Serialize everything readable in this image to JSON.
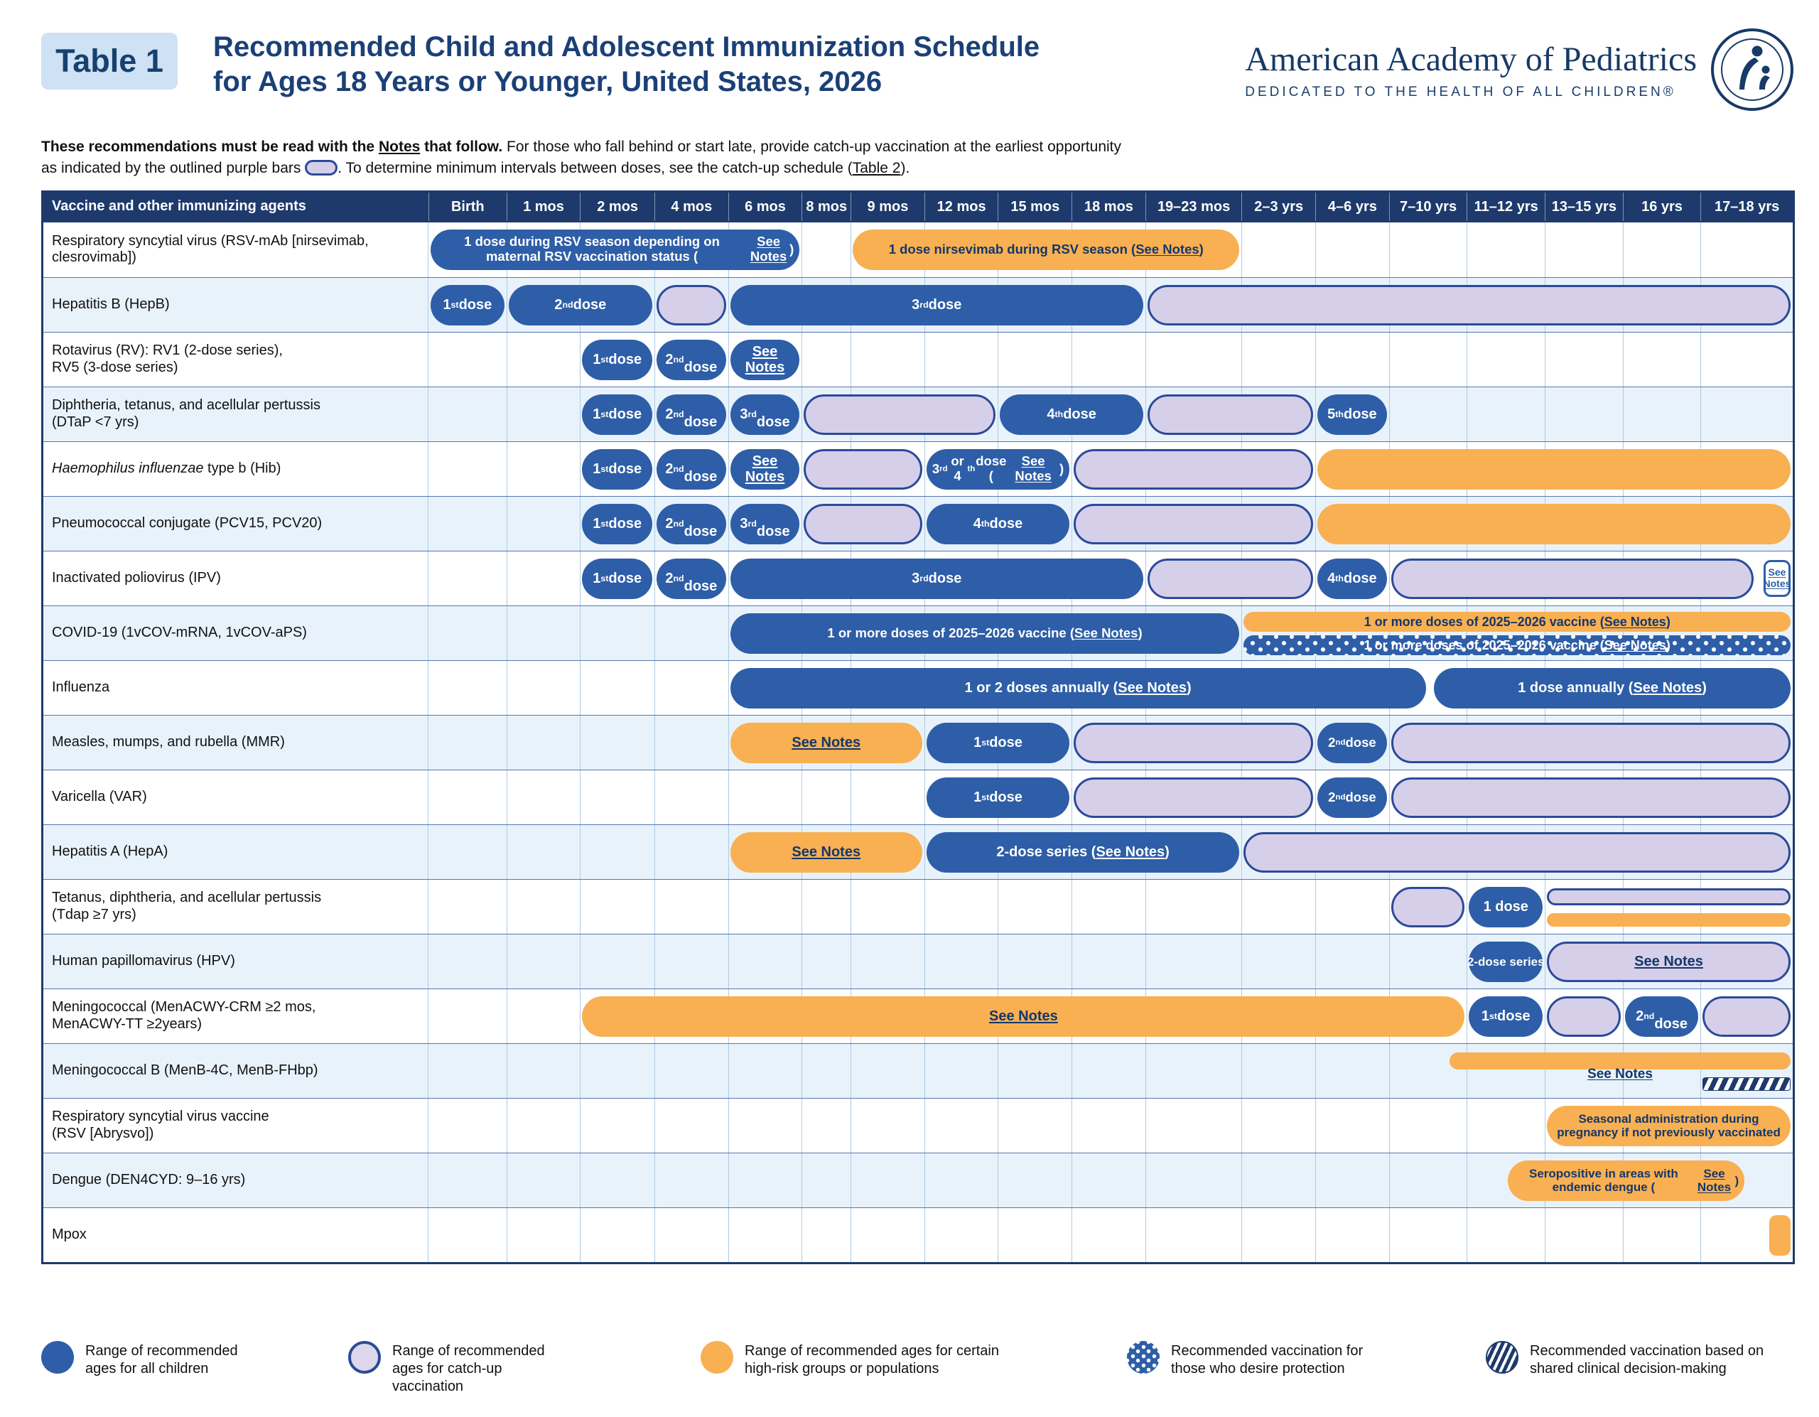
{
  "header": {
    "badge": "Table 1",
    "title_line1": "Recommended Child and Adolescent Immunization Schedule",
    "title_line2": "for Ages 18 Years or Younger, United States, 2026",
    "brand_name": "American Academy of Pediatrics",
    "brand_tagline": "DEDICATED TO THE HEALTH OF ALL CHILDREN®"
  },
  "intro": {
    "segments": [
      {
        "text": "These recommendations must be read with the ",
        "bold": true
      },
      {
        "text": "Notes",
        "bold": true,
        "underline": true
      },
      {
        "text": " that follow.",
        "bold": true
      },
      {
        "text": " For those who fall behind or start late, provide catch-up vaccination at the earliest opportunity as indicated by the outlined purple bars "
      },
      {
        "icon": "catch-up-pill"
      },
      {
        "text": ". To determine minimum intervals between doses, see the catch-up schedule ("
      },
      {
        "text": "Table 2",
        "underline": true
      },
      {
        "text": ")."
      }
    ]
  },
  "colors": {
    "recommended_blue": "#2E5EA7",
    "catch_up_fill": "#D6CFE9",
    "catch_up_border": "#2B4A99",
    "high_risk_orange": "#F8B052",
    "header_navy": "#1E3A6C",
    "title_navy": "#1B4077"
  },
  "table": {
    "vaccine_column_header": "Vaccine and other immunizing agents",
    "age_columns": [
      "Birth",
      "1 mos",
      "2 mos",
      "4 mos",
      "6 mos",
      "8 mos",
      "9 mos",
      "12 mos",
      "15 mos",
      "18 mos",
      "19–23 mos",
      "2–3 yrs",
      "4–6 yrs",
      "7–10 yrs",
      "11–12 yrs",
      "13–15 yrs",
      "16 yrs",
      "17–18 yrs"
    ],
    "rows": [
      {
        "id": "rsv-mab",
        "label_lines": [
          [
            {
              "t": "Respiratory syncytial virus (RSV-mAb [nirsevimab,"
            }
          ],
          [
            {
              "t": "clesrovimab])"
            }
          ]
        ],
        "bars": [
          {
            "type": "blue",
            "start": 0,
            "end": 5,
            "size": "full",
            "font": "sm",
            "label": "1 dose during RSV season depending on maternal RSV vaccination status (See Notes)"
          },
          {
            "type": "orange",
            "start": 6,
            "end": 11,
            "size": "full",
            "font": "sm",
            "label": "1 dose nirsevimab during RSV season (See Notes)"
          }
        ]
      },
      {
        "id": "hepb",
        "label_lines": [
          [
            {
              "t": "Hepatitis B (HepB)"
            }
          ]
        ],
        "bars": [
          {
            "type": "blue",
            "start": 0,
            "end": 1,
            "label": "1st dose"
          },
          {
            "type": "blue",
            "start": 1,
            "end": 3,
            "label": "2nd dose"
          },
          {
            "type": "catchup",
            "start": 3,
            "end": 4
          },
          {
            "type": "blue",
            "start": 4,
            "end": 10,
            "label": "3rd dose"
          },
          {
            "type": "catchup",
            "start": 10,
            "end": 18
          }
        ]
      },
      {
        "id": "rotavirus",
        "label_lines": [
          [
            {
              "t": "Rotavirus (RV): RV1 (2-dose series),"
            }
          ],
          [
            {
              "t": "RV5 (3-dose series)"
            }
          ]
        ],
        "bars": [
          {
            "type": "blue",
            "start": 2,
            "end": 3,
            "label": "1st dose"
          },
          {
            "type": "blue",
            "start": 3,
            "end": 4,
            "label": "2nd dose",
            "stack": true
          },
          {
            "type": "blue",
            "start": 4,
            "end": 5,
            "label": "See Notes",
            "stack": true
          }
        ]
      },
      {
        "id": "dtap",
        "label_lines": [
          [
            {
              "t": "Diphtheria, tetanus, and acellular pertussis"
            }
          ],
          [
            {
              "t": "(DTaP <7 yrs)"
            }
          ]
        ],
        "bars": [
          {
            "type": "blue",
            "start": 2,
            "end": 3,
            "label": "1st dose"
          },
          {
            "type": "blue",
            "start": 3,
            "end": 4,
            "label": "2nd dose",
            "stack": true
          },
          {
            "type": "blue",
            "start": 4,
            "end": 5,
            "label": "3rd dose",
            "stack": true
          },
          {
            "type": "catchup",
            "start": 5,
            "end": 8
          },
          {
            "type": "blue",
            "start": 8,
            "end": 10,
            "label": "4th dose"
          },
          {
            "type": "catchup",
            "start": 10,
            "end": 12
          },
          {
            "type": "blue",
            "start": 12,
            "end": 13,
            "label": "5th dose"
          }
        ]
      },
      {
        "id": "hib",
        "label_lines": [
          [
            {
              "t": "Haemophilus influenzae",
              "i": true
            },
            {
              "t": " type b (Hib)"
            }
          ]
        ],
        "bars": [
          {
            "type": "blue",
            "start": 2,
            "end": 3,
            "label": "1st dose"
          },
          {
            "type": "blue",
            "start": 3,
            "end": 4,
            "label": "2nd dose",
            "stack": true
          },
          {
            "type": "blue",
            "start": 4,
            "end": 5,
            "label": "See Notes",
            "stack": true
          },
          {
            "type": "catchup",
            "start": 5,
            "end": 7
          },
          {
            "type": "blue",
            "start": 7,
            "end": 9,
            "font": "sm",
            "label": "3rd or 4th dose (See Notes)"
          },
          {
            "type": "catchup",
            "start": 9,
            "end": 12
          },
          {
            "type": "orange",
            "start": 12,
            "end": 18
          }
        ]
      },
      {
        "id": "pcv",
        "label_lines": [
          [
            {
              "t": "Pneumococcal conjugate (PCV15, PCV20)"
            }
          ]
        ],
        "bars": [
          {
            "type": "blue",
            "start": 2,
            "end": 3,
            "label": "1st dose"
          },
          {
            "type": "blue",
            "start": 3,
            "end": 4,
            "label": "2nd dose",
            "stack": true
          },
          {
            "type": "blue",
            "start": 4,
            "end": 5,
            "label": "3rd dose",
            "stack": true
          },
          {
            "type": "catchup",
            "start": 5,
            "end": 7
          },
          {
            "type": "blue",
            "start": 7,
            "end": 9,
            "label": "4th dose"
          },
          {
            "type": "catchup",
            "start": 9,
            "end": 12
          },
          {
            "type": "orange",
            "start": 12,
            "end": 18
          }
        ]
      },
      {
        "id": "ipv",
        "label_lines": [
          [
            {
              "t": "Inactivated poliovirus (IPV)"
            }
          ]
        ],
        "bars": [
          {
            "type": "blue",
            "start": 2,
            "end": 3,
            "label": "1st dose"
          },
          {
            "type": "blue",
            "start": 3,
            "end": 4,
            "label": "2nd dose",
            "stack": true
          },
          {
            "type": "blue",
            "start": 4,
            "end": 10,
            "label": "3rd dose"
          },
          {
            "type": "catchup",
            "start": 10,
            "end": 12
          },
          {
            "type": "blue",
            "start": 12,
            "end": 13,
            "label": "4th dose"
          },
          {
            "type": "catchup",
            "start": 13,
            "end": 17.6
          },
          {
            "type": "notesbox",
            "start": 17.66,
            "end": 18,
            "label": "See Notes",
            "stack": true
          }
        ]
      },
      {
        "id": "covid",
        "label_lines": [
          [
            {
              "t": "COVID-19 (1vCOV-mRNA, 1vCOV-aPS)"
            }
          ]
        ],
        "bars": [
          {
            "type": "blue",
            "start": 4,
            "end": 11,
            "font": "sm",
            "label": "1 or more doses of 2025–2026 vaccine (See Notes)"
          },
          {
            "type": "orange",
            "start": 11,
            "end": 18,
            "size": "half-top",
            "label": "1 or more doses of 2025–2026 vaccine (See Notes)"
          },
          {
            "type": "dotted",
            "start": 11,
            "end": 18,
            "size": "half-bottom",
            "label": "1 or more doses of 2025–2026 vaccine (See Notes)"
          }
        ]
      },
      {
        "id": "influenza",
        "label_lines": [
          [
            {
              "t": "Influenza"
            }
          ]
        ],
        "bars": [
          {
            "type": "blue",
            "start": 4,
            "end": 13.5,
            "label": "1 or 2 doses annually (See Notes)"
          },
          {
            "type": "blue",
            "start": 13.55,
            "end": 18,
            "label": "1 dose annually (See Notes)"
          }
        ]
      },
      {
        "id": "mmr",
        "label_lines": [
          [
            {
              "t": "Measles, mumps, and rubella (MMR)"
            }
          ]
        ],
        "bars": [
          {
            "type": "orange",
            "start": 4,
            "end": 7,
            "label": "See Notes"
          },
          {
            "type": "blue",
            "start": 7,
            "end": 9,
            "label": "1st dose"
          },
          {
            "type": "catchup",
            "start": 9,
            "end": 12
          },
          {
            "type": "blue",
            "start": 12,
            "end": 13,
            "font": "sm",
            "label": "2nd dose"
          },
          {
            "type": "catchup",
            "start": 13,
            "end": 18
          }
        ]
      },
      {
        "id": "varicella",
        "label_lines": [
          [
            {
              "t": "Varicella (VAR)"
            }
          ]
        ],
        "bars": [
          {
            "type": "blue",
            "start": 7,
            "end": 9,
            "label": "1st dose"
          },
          {
            "type": "catchup",
            "start": 9,
            "end": 12
          },
          {
            "type": "blue",
            "start": 12,
            "end": 13,
            "font": "sm",
            "label": "2nd dose"
          },
          {
            "type": "catchup",
            "start": 13,
            "end": 18
          }
        ]
      },
      {
        "id": "hepa",
        "label_lines": [
          [
            {
              "t": "Hepatitis A (HepA)"
            }
          ]
        ],
        "bars": [
          {
            "type": "orange",
            "start": 4,
            "end": 7,
            "label": "See Notes"
          },
          {
            "type": "blue",
            "start": 7,
            "end": 11,
            "label": "2-dose series (See Notes)"
          },
          {
            "type": "catchup",
            "start": 11,
            "end": 18
          }
        ]
      },
      {
        "id": "tdap",
        "label_lines": [
          [
            {
              "t": "Tetanus, diphtheria, and acellular pertussis"
            }
          ],
          [
            {
              "t": "(Tdap ≥7 yrs)"
            }
          ]
        ],
        "bars": [
          {
            "type": "catchup",
            "start": 13,
            "end": 14
          },
          {
            "type": "blue",
            "start": 14,
            "end": 15,
            "label": "1 dose"
          },
          {
            "type": "catchup",
            "start": 15,
            "end": 18,
            "size": "thin-top"
          },
          {
            "type": "orange",
            "start": 15,
            "end": 18,
            "size": "thin-bottom"
          }
        ]
      },
      {
        "id": "hpv",
        "label_lines": [
          [
            {
              "t": "Human papillomavirus (HPV)"
            }
          ]
        ],
        "bars": [
          {
            "type": "blue",
            "start": 14,
            "end": 15,
            "font": "xs",
            "nowrap": true,
            "label": "2-dose series"
          },
          {
            "type": "catchup",
            "start": 15,
            "end": 18,
            "label": "See Notes"
          }
        ]
      },
      {
        "id": "menacwy",
        "label_lines": [
          [
            {
              "t": "Meningococcal (MenACWY-CRM ≥2 mos,"
            }
          ],
          [
            {
              "t": "MenACWY-TT ≥2years)"
            }
          ]
        ],
        "bars": [
          {
            "type": "orange",
            "start": 2,
            "end": 14,
            "label": "See Notes"
          },
          {
            "type": "blue",
            "start": 14,
            "end": 15,
            "label": "1st dose"
          },
          {
            "type": "catchup",
            "start": 15,
            "end": 16
          },
          {
            "type": "blue",
            "start": 16,
            "end": 17,
            "label": "2nd dose",
            "stack": true
          },
          {
            "type": "catchup",
            "start": 17,
            "end": 18
          }
        ]
      },
      {
        "id": "menb",
        "label_lines": [
          [
            {
              "t": "Meningococcal B (MenB-4C, MenB-FHbp)"
            }
          ]
        ],
        "bars": [
          {
            "type": "orange",
            "start": 13.75,
            "end": 18,
            "size": "thin-top"
          },
          {
            "type": "text",
            "start": 13.75,
            "end": 18,
            "size": "text-mid",
            "label": "See Notes"
          },
          {
            "type": "hatch",
            "start": 17,
            "end": 18,
            "size": "thin-bottom"
          }
        ]
      },
      {
        "id": "rsv-vaccine",
        "label_lines": [
          [
            {
              "t": "Respiratory syncytial virus vaccine"
            }
          ],
          [
            {
              "t": "(RSV [Abrysvo])"
            }
          ]
        ],
        "bars": [
          {
            "type": "orange",
            "start": 15,
            "end": 18,
            "font": "xs",
            "label": "Seasonal administration during pregnancy if not previously vaccinated"
          }
        ]
      },
      {
        "id": "dengue",
        "label_lines": [
          [
            {
              "t": "Dengue (DEN4CYD: 9–16 yrs)"
            }
          ]
        ],
        "bars": [
          {
            "type": "orange",
            "start": 14.5,
            "end": 17.5,
            "font": "xs",
            "label": "Seropositive in areas with endemic dengue (See Notes)"
          }
        ]
      },
      {
        "id": "mpox",
        "label_lines": [
          [
            {
              "t": "Mpox"
            }
          ]
        ],
        "bars": [
          {
            "type": "orange",
            "start": 17.72,
            "end": 18,
            "square": true
          }
        ]
      }
    ]
  },
  "legend": {
    "items": [
      {
        "swatch": "blue",
        "label": "Range of recommended ages for all children"
      },
      {
        "swatch": "catchup",
        "label": "Range of recommended ages for catch-up vaccination"
      },
      {
        "swatch": "orange",
        "label": "Range of recommended ages for certain high-risk groups or populations"
      },
      {
        "swatch": "dotted",
        "label": "Recommended vaccination for those who desire protection"
      },
      {
        "swatch": "hatch",
        "label": "Recommended vaccination based on shared clinical decision-making"
      }
    ]
  }
}
